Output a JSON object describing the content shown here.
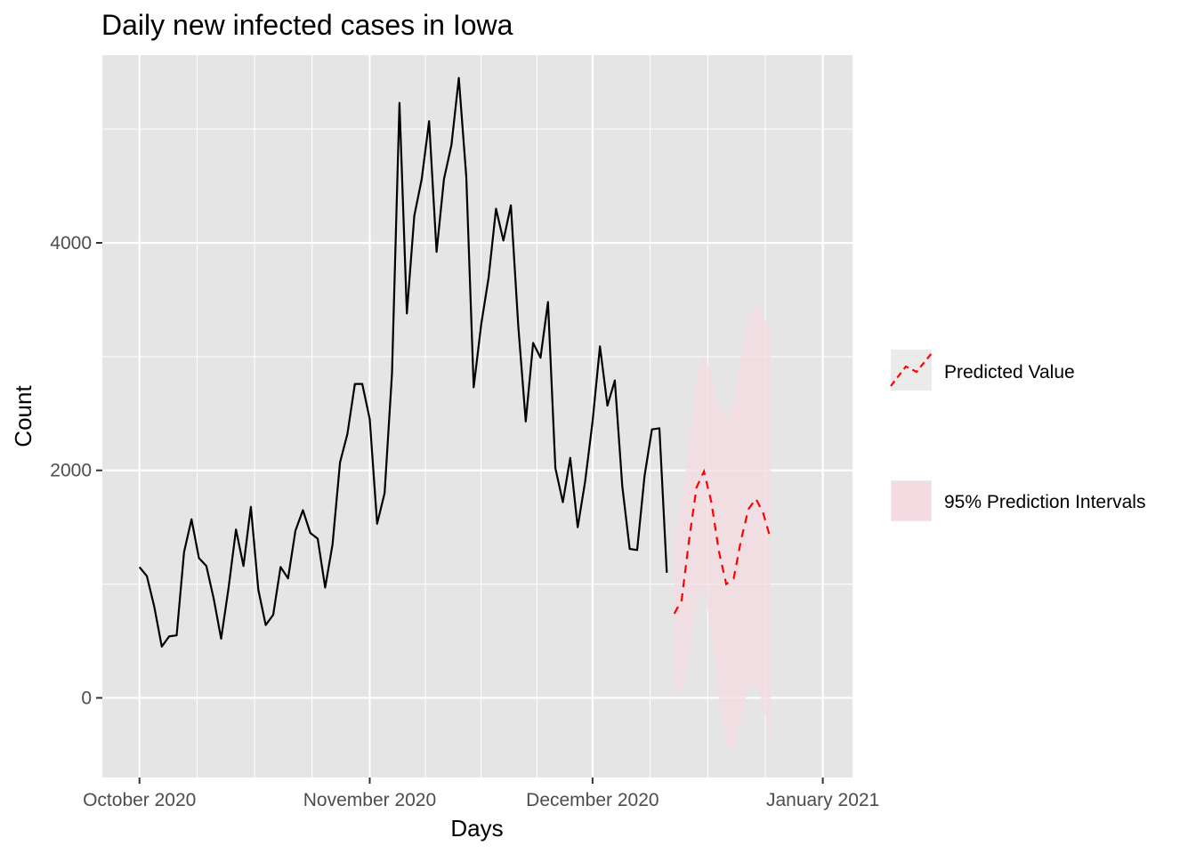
{
  "chart_data": {
    "type": "line",
    "title": "Daily new infected cases in Iowa",
    "xlabel": "Days",
    "ylabel": "Count",
    "x_axis_type": "date",
    "xlim": [
      "2020-09-26",
      "2021-01-05"
    ],
    "ylim": [
      -700,
      5650
    ],
    "x_ticks": [
      {
        "date": "2020-10-01",
        "label": "October 2020"
      },
      {
        "date": "2020-11-01",
        "label": "November 2020"
      },
      {
        "date": "2020-12-01",
        "label": "December 2020"
      },
      {
        "date": "2021-01-01",
        "label": "January 2021"
      }
    ],
    "y_ticks": [
      0,
      2000,
      4000
    ],
    "grid": true,
    "legend_position": "right",
    "colors": {
      "panel_background": "#e5e5e5",
      "grid_line": "#ffffff",
      "observed": "#000000",
      "predicted": "#ff0000",
      "interval_fill": "#f4dbe1",
      "legend_key_background": "#ebebeb"
    },
    "series": [
      {
        "name": "",
        "kind": "observed",
        "points": [
          {
            "x": "2020-10-01",
            "y": 1150
          },
          {
            "x": "2020-10-02",
            "y": 1070
          },
          {
            "x": "2020-10-03",
            "y": 800
          },
          {
            "x": "2020-10-04",
            "y": 450
          },
          {
            "x": "2020-10-05",
            "y": 540
          },
          {
            "x": "2020-10-06",
            "y": 550
          },
          {
            "x": "2020-10-07",
            "y": 1280
          },
          {
            "x": "2020-10-08",
            "y": 1570
          },
          {
            "x": "2020-10-09",
            "y": 1230
          },
          {
            "x": "2020-10-10",
            "y": 1160
          },
          {
            "x": "2020-10-11",
            "y": 870
          },
          {
            "x": "2020-10-12",
            "y": 520
          },
          {
            "x": "2020-10-13",
            "y": 970
          },
          {
            "x": "2020-10-14",
            "y": 1480
          },
          {
            "x": "2020-10-15",
            "y": 1160
          },
          {
            "x": "2020-10-16",
            "y": 1680
          },
          {
            "x": "2020-10-17",
            "y": 950
          },
          {
            "x": "2020-10-18",
            "y": 640
          },
          {
            "x": "2020-10-19",
            "y": 730
          },
          {
            "x": "2020-10-20",
            "y": 1150
          },
          {
            "x": "2020-10-21",
            "y": 1050
          },
          {
            "x": "2020-10-22",
            "y": 1470
          },
          {
            "x": "2020-10-23",
            "y": 1650
          },
          {
            "x": "2020-10-24",
            "y": 1450
          },
          {
            "x": "2020-10-25",
            "y": 1400
          },
          {
            "x": "2020-10-26",
            "y": 970
          },
          {
            "x": "2020-10-27",
            "y": 1350
          },
          {
            "x": "2020-10-28",
            "y": 2070
          },
          {
            "x": "2020-10-29",
            "y": 2320
          },
          {
            "x": "2020-10-30",
            "y": 2760
          },
          {
            "x": "2020-10-31",
            "y": 2760
          },
          {
            "x": "2020-11-01",
            "y": 2450
          },
          {
            "x": "2020-11-02",
            "y": 1530
          },
          {
            "x": "2020-11-03",
            "y": 1800
          },
          {
            "x": "2020-11-04",
            "y": 2850
          },
          {
            "x": "2020-11-05",
            "y": 5230
          },
          {
            "x": "2020-11-06",
            "y": 3380
          },
          {
            "x": "2020-11-07",
            "y": 4240
          },
          {
            "x": "2020-11-08",
            "y": 4560
          },
          {
            "x": "2020-11-09",
            "y": 5070
          },
          {
            "x": "2020-11-10",
            "y": 3920
          },
          {
            "x": "2020-11-11",
            "y": 4560
          },
          {
            "x": "2020-11-12",
            "y": 4860
          },
          {
            "x": "2020-11-13",
            "y": 5450
          },
          {
            "x": "2020-11-14",
            "y": 4580
          },
          {
            "x": "2020-11-15",
            "y": 2730
          },
          {
            "x": "2020-11-16",
            "y": 3280
          },
          {
            "x": "2020-11-17",
            "y": 3690
          },
          {
            "x": "2020-11-18",
            "y": 4300
          },
          {
            "x": "2020-11-19",
            "y": 4020
          },
          {
            "x": "2020-11-20",
            "y": 4330
          },
          {
            "x": "2020-11-21",
            "y": 3270
          },
          {
            "x": "2020-11-22",
            "y": 2430
          },
          {
            "x": "2020-11-23",
            "y": 3120
          },
          {
            "x": "2020-11-24",
            "y": 2990
          },
          {
            "x": "2020-11-25",
            "y": 3480
          },
          {
            "x": "2020-11-26",
            "y": 2020
          },
          {
            "x": "2020-11-27",
            "y": 1720
          },
          {
            "x": "2020-11-28",
            "y": 2110
          },
          {
            "x": "2020-11-29",
            "y": 1500
          },
          {
            "x": "2020-11-30",
            "y": 1900
          },
          {
            "x": "2020-12-01",
            "y": 2430
          },
          {
            "x": "2020-12-02",
            "y": 3090
          },
          {
            "x": "2020-12-03",
            "y": 2570
          },
          {
            "x": "2020-12-04",
            "y": 2790
          },
          {
            "x": "2020-12-05",
            "y": 1860
          },
          {
            "x": "2020-12-06",
            "y": 1310
          },
          {
            "x": "2020-12-07",
            "y": 1300
          },
          {
            "x": "2020-12-08",
            "y": 1950
          },
          {
            "x": "2020-12-09",
            "y": 2360
          },
          {
            "x": "2020-12-10",
            "y": 2370
          },
          {
            "x": "2020-12-11",
            "y": 1100
          }
        ]
      },
      {
        "name": "Predicted Value",
        "kind": "predicted",
        "points": [
          {
            "x": "2020-12-12",
            "y": 740
          },
          {
            "x": "2020-12-13",
            "y": 860
          },
          {
            "x": "2020-12-14",
            "y": 1390
          },
          {
            "x": "2020-12-15",
            "y": 1850
          },
          {
            "x": "2020-12-16",
            "y": 1990
          },
          {
            "x": "2020-12-17",
            "y": 1720
          },
          {
            "x": "2020-12-18",
            "y": 1290
          },
          {
            "x": "2020-12-19",
            "y": 1000
          },
          {
            "x": "2020-12-20",
            "y": 1050
          },
          {
            "x": "2020-12-21",
            "y": 1390
          },
          {
            "x": "2020-12-22",
            "y": 1660
          },
          {
            "x": "2020-12-23",
            "y": 1750
          },
          {
            "x": "2020-12-24",
            "y": 1620
          },
          {
            "x": "2020-12-25",
            "y": 1390
          }
        ]
      },
      {
        "name": "95% Prediction Intervals",
        "kind": "interval",
        "points": [
          {
            "x": "2020-12-12",
            "lower": 80,
            "upper": 1410
          },
          {
            "x": "2020-12-13",
            "lower": 50,
            "upper": 1710
          },
          {
            "x": "2020-12-14",
            "lower": 380,
            "upper": 2230
          },
          {
            "x": "2020-12-15",
            "lower": 870,
            "upper": 2830
          },
          {
            "x": "2020-12-16",
            "lower": 960,
            "upper": 3010
          },
          {
            "x": "2020-12-17",
            "lower": 580,
            "upper": 2840
          },
          {
            "x": "2020-12-18",
            "lower": 0,
            "upper": 2580
          },
          {
            "x": "2020-12-19",
            "lower": -410,
            "upper": 2430
          },
          {
            "x": "2020-12-20",
            "lower": -460,
            "upper": 2600
          },
          {
            "x": "2020-12-21",
            "lower": -190,
            "upper": 3020
          },
          {
            "x": "2020-12-22",
            "lower": 90,
            "upper": 3360
          },
          {
            "x": "2020-12-23",
            "lower": 120,
            "upper": 3450
          },
          {
            "x": "2020-12-24",
            "lower": -80,
            "upper": 3350
          },
          {
            "x": "2020-12-25",
            "lower": -420,
            "upper": 3210
          }
        ]
      }
    ]
  }
}
